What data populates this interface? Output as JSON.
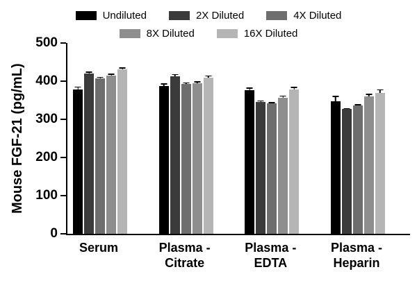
{
  "chart_data": {
    "type": "bar",
    "title": "",
    "xlabel": "",
    "ylabel": "Mouse FGF-21 (pg/mL)",
    "ylim": [
      0,
      500
    ],
    "yticks": [
      0,
      100,
      200,
      300,
      400,
      500
    ],
    "grid": false,
    "legend_position": "top",
    "legend_wrap": 3,
    "categories": [
      [
        "Serum"
      ],
      [
        "Plasma -",
        "Citrate"
      ],
      [
        "Plasma -",
        "EDTA"
      ],
      [
        "Plasma -",
        "Heparin"
      ]
    ],
    "series": [
      {
        "name": "Undiluted",
        "color": "#000000",
        "values": [
          378,
          387,
          377,
          348
        ],
        "errors": [
          8,
          7,
          6,
          13
        ]
      },
      {
        "name": "2X Diluted",
        "color": "#3b3b3b",
        "values": [
          420,
          413,
          346,
          327
        ],
        "errors": [
          5,
          6,
          4,
          3
        ]
      },
      {
        "name": "4X Diluted",
        "color": "#6e6e6e",
        "values": [
          407,
          393,
          342,
          336
        ],
        "errors": [
          4,
          4,
          3,
          4
        ]
      },
      {
        "name": "8X Diluted",
        "color": "#8e8e8e",
        "values": [
          415,
          395,
          357,
          360
        ],
        "errors": [
          5,
          5,
          5,
          7
        ]
      },
      {
        "name": "16X Diluted",
        "color": "#b5b5b5",
        "values": [
          431,
          409,
          378,
          369
        ],
        "errors": [
          5,
          6,
          7,
          10
        ]
      }
    ]
  }
}
